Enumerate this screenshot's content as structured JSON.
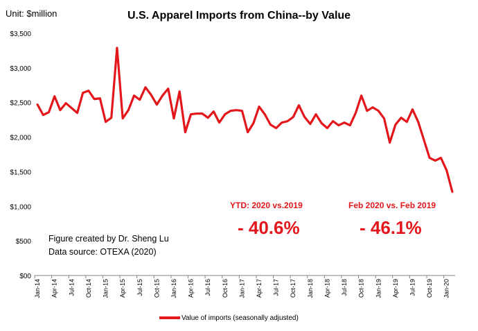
{
  "chart_data": {
    "type": "line",
    "title": "U.S. Apparel Imports from China--by Value",
    "unit_label": "Unit: $million",
    "xlabel": "",
    "ylabel": "",
    "ylim": [
      0,
      3500
    ],
    "y_ticks": [
      0,
      500,
      1000,
      1500,
      2000,
      2500,
      3000,
      3500
    ],
    "y_tick_labels": [
      "$00",
      "$500",
      "$1,000",
      "$1,500",
      "$2,000",
      "$2,500",
      "$3,000",
      "$3,500"
    ],
    "x_tick_labels": [
      "Jan-14",
      "Apr-14",
      "Jul-14",
      "Oct-14",
      "Jan-15",
      "Apr-15",
      "Jul-15",
      "Oct-15",
      "Jan-16",
      "Apr-16",
      "Jul-16",
      "Oct-16",
      "Jan-17",
      "Apr-17",
      "Jul-17",
      "Oct-17",
      "Jan-18",
      "Apr-18",
      "Jul-18",
      "Oct-18",
      "Jan-19",
      "Apr-19",
      "Jul-19",
      "Oct-19",
      "Jan-20"
    ],
    "series": [
      {
        "name": "Value of imports (seasonally adjusted)",
        "color": "#e3161b",
        "values": [
          2470,
          2320,
          2360,
          2590,
          2390,
          2490,
          2420,
          2350,
          2640,
          2670,
          2550,
          2560,
          2220,
          2280,
          3290,
          2270,
          2390,
          2600,
          2540,
          2720,
          2610,
          2470,
          2600,
          2700,
          2270,
          2660,
          2070,
          2330,
          2340,
          2340,
          2280,
          2370,
          2210,
          2330,
          2380,
          2390,
          2380,
          2070,
          2200,
          2440,
          2330,
          2180,
          2130,
          2210,
          2230,
          2290,
          2460,
          2290,
          2190,
          2330,
          2200,
          2130,
          2230,
          2170,
          2210,
          2170,
          2350,
          2600,
          2380,
          2430,
          2380,
          2270,
          1920,
          2180,
          2280,
          2220,
          2400,
          2220,
          1960,
          1700,
          1660,
          1700,
          1520,
          1210
        ]
      }
    ],
    "annotations": {
      "credit_line1": "Figure created by Dr. Sheng Lu",
      "credit_line2": "Data source: OTEXA (2020)",
      "ytd_label": "YTD: 2020  vs.2019",
      "ytd_value": "- 40.6%",
      "feb_label": "Feb 2020  vs. Feb 2019",
      "feb_value": "- 46.1%"
    },
    "legend": {
      "position": "bottom-center",
      "label": "Value of imports (seasonally adjusted)"
    },
    "colors": {
      "accent": "#e3161b",
      "axis": "#808080"
    }
  }
}
